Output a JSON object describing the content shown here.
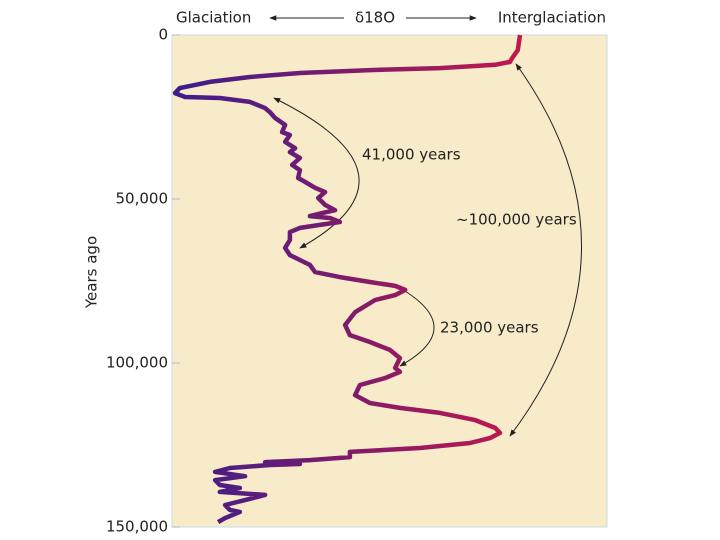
{
  "chart_data": {
    "type": "line",
    "x_label": "δ18O",
    "x_label_left": "Glaciation",
    "x_label_right": "Interglaciation",
    "y_label": "Years ago",
    "annotations": [
      {
        "text": "41,000 years"
      },
      {
        "text": "~100,000 years"
      },
      {
        "text": "23,000 years"
      }
    ],
    "xlim": [
      0,
      100
    ],
    "ylim": [
      0,
      150000
    ],
    "yticks": [
      0,
      {
        "value": 50000,
        "label": "50,000"
      },
      {
        "value": 100000,
        "label": "100,000"
      },
      {
        "value": 150000,
        "label": "150,000"
      }
    ],
    "colors": [
      "#3b1e8c",
      "#e3173c"
    ],
    "x": [
      80,
      79.5,
      78.2,
      77.7,
      74.3,
      61.6,
      45.5,
      29.4,
      17.9,
      8.7,
      1.8,
      0.7,
      3.0,
      11.0,
      17.9,
      21.4,
      22.5,
      23.7,
      26.0,
      25.3,
      27.1,
      26.0,
      28.3,
      27.1,
      29.4,
      27.6,
      29.4,
      29.0,
      30.6,
      32.9,
      35.2,
      33.6,
      35.2,
      37.5,
      34.5,
      31.7,
      36.3,
      38.6,
      34.0,
      29.4,
      27.1,
      27.1,
      26.0,
      27.1,
      29.4,
      31.7,
      32.9,
      38.6,
      45.5,
      51.3,
      53.6,
      51.3,
      46.7,
      42.1,
      39.8,
      40.9,
      45.5,
      50.1,
      52.4,
      51.3,
      52.4,
      49.0,
      43.2,
      42.1,
      45.5,
      52.4,
      61.6,
      69.7,
      74.3,
      75.4,
      73.1,
      68.5,
      57.0,
      40.9,
      40.9,
      31.7,
      21.4,
      29.4,
      22.5,
      13.3,
      9.9,
      16.8,
      9.9,
      11.0,
      15.6,
      11.0,
      21.4,
      16.8,
      12.2,
      13.3,
      15.6,
      12.2,
      10.6
    ],
    "y": [
      0,
      4600,
      7000,
      8200,
      9100,
      10100,
      10700,
      11600,
      12800,
      14300,
      16200,
      17700,
      18900,
      19200,
      20400,
      22300,
      23500,
      25300,
      27400,
      29600,
      30500,
      32600,
      34500,
      35700,
      37500,
      39600,
      41200,
      43600,
      44800,
      46600,
      47900,
      49700,
      51800,
      53400,
      54300,
      55200,
      55800,
      57000,
      57900,
      58800,
      60100,
      62500,
      64900,
      67100,
      68600,
      70100,
      72300,
      73800,
      75300,
      76500,
      77700,
      79300,
      80800,
      84500,
      88400,
      91500,
      93600,
      96000,
      98500,
      101500,
      102700,
      104600,
      106700,
      109800,
      112200,
      113700,
      115200,
      117400,
      119800,
      121300,
      122900,
      124400,
      125900,
      127100,
      128700,
      129600,
      130200,
      130800,
      131100,
      132000,
      133200,
      134500,
      135700,
      137200,
      138100,
      139300,
      140200,
      141800,
      143300,
      144800,
      145400,
      147300,
      148500
    ]
  }
}
